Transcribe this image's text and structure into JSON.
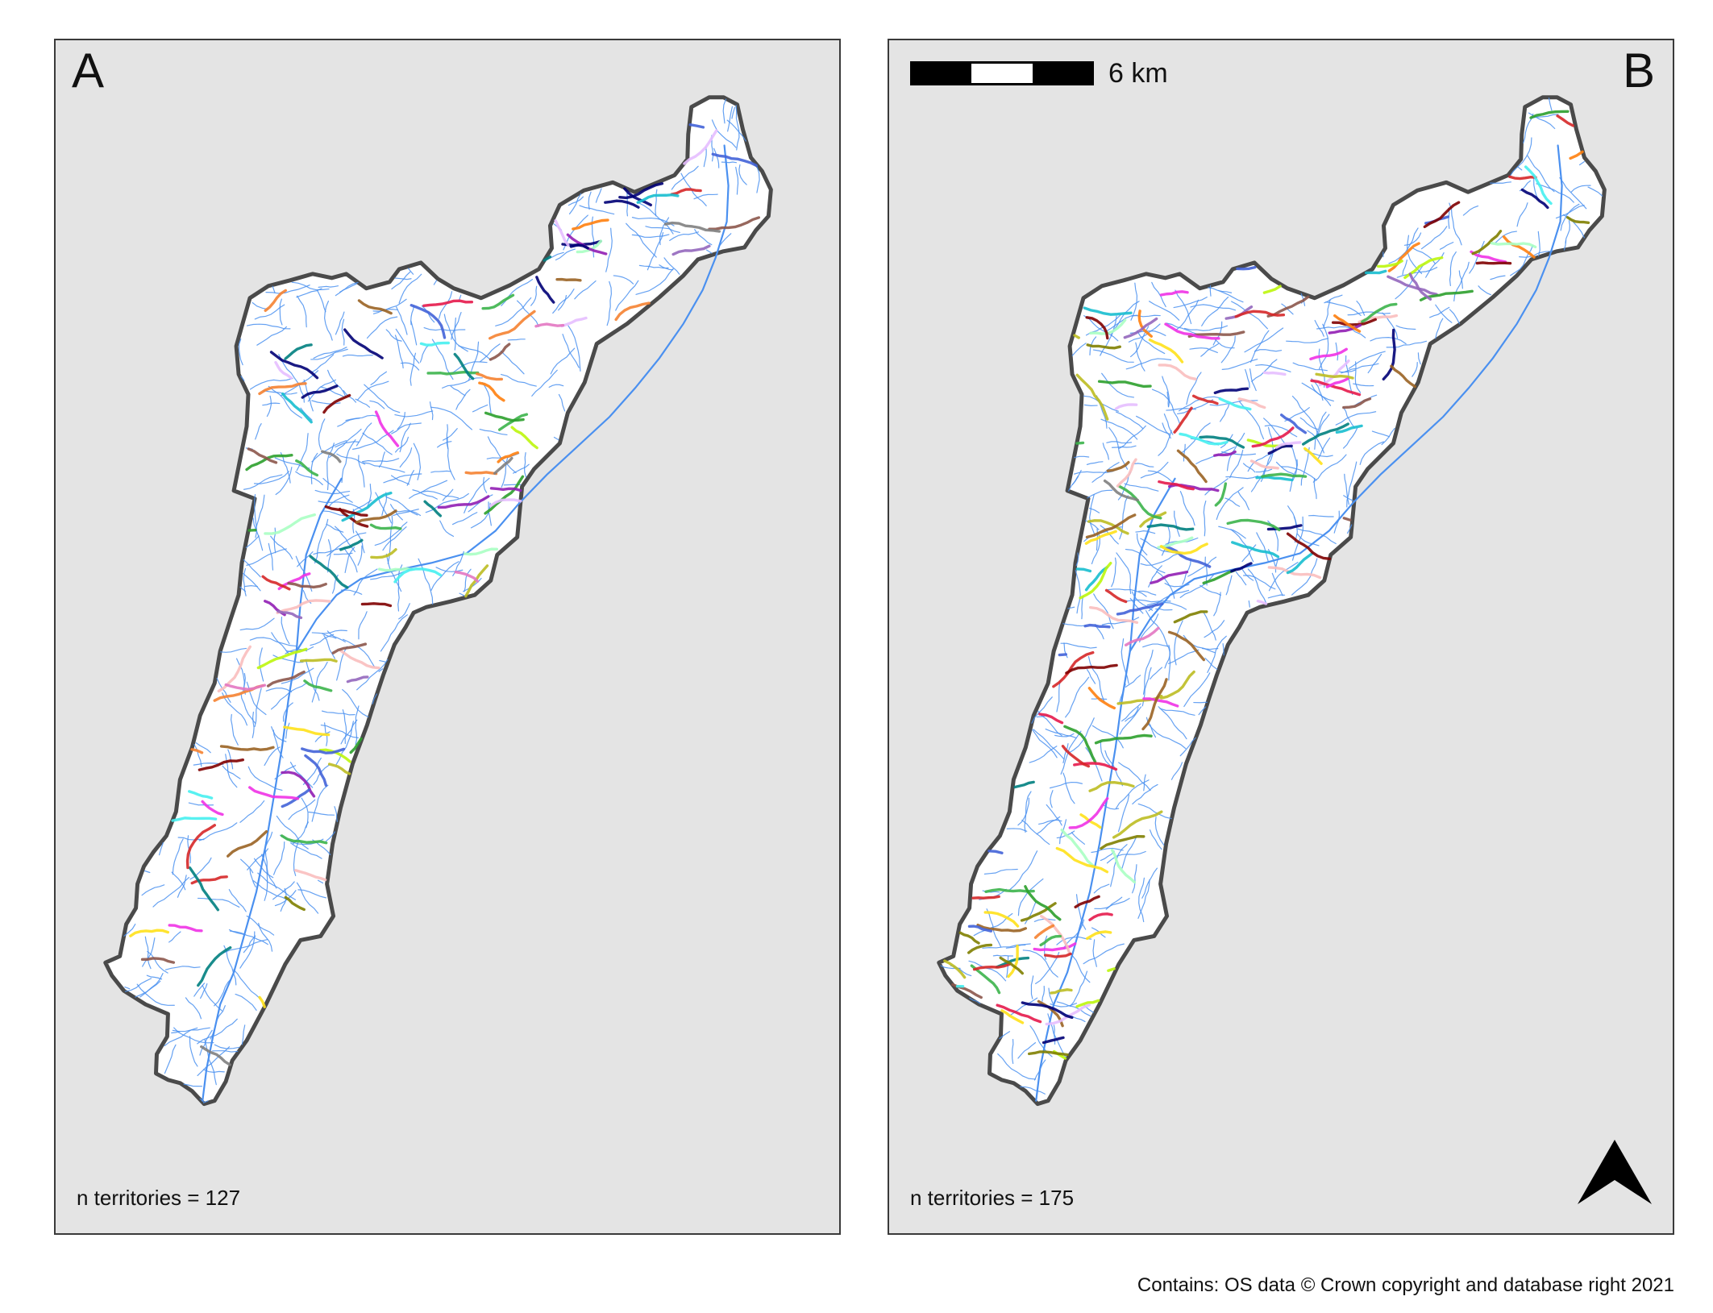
{
  "panels": [
    {
      "id": "A",
      "letter": "A",
      "count_label": "n territories = 127",
      "territories": 127
    },
    {
      "id": "B",
      "letter": "B",
      "count_label": "n territories = 175",
      "territories": 175
    }
  ],
  "scale_bar": {
    "label": "6 km"
  },
  "north_arrow": {
    "icon": "north-arrow-icon"
  },
  "credit": "Contains: OS data © Crown copyright and database right 2021",
  "colors": {
    "panel_background": "#e4e4e4",
    "catchment_fill": "#ffffff",
    "catchment_outline": "#4a4a4a",
    "river_network": "#4a90f0",
    "territory_palette": [
      "#e6194b",
      "#3cb44b",
      "#ffe119",
      "#4363d8",
      "#f58231",
      "#911eb4",
      "#46f0f0",
      "#f032e6",
      "#bcf60c",
      "#fabebe",
      "#008080",
      "#e6beff",
      "#9a6324",
      "#808000",
      "#800000",
      "#aaffc3",
      "#000075",
      "#808080",
      "#e377c2",
      "#17becf",
      "#ff7f0e",
      "#2ca02c",
      "#d62728",
      "#9467bd",
      "#8c564b",
      "#bcbd22"
    ]
  }
}
